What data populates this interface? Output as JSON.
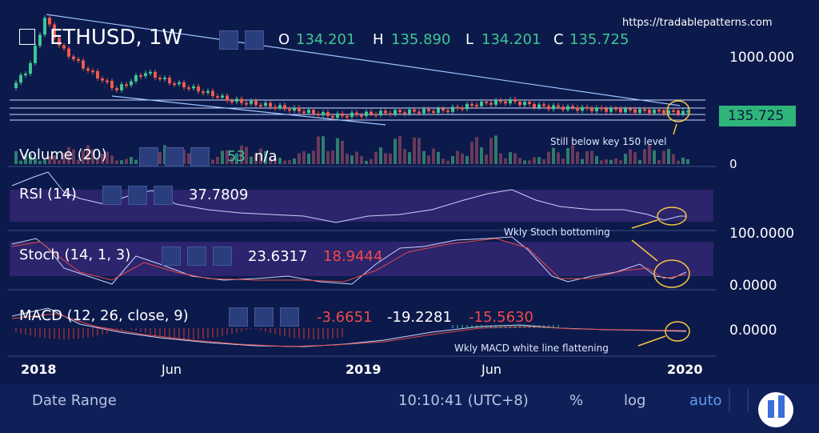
{
  "header": {
    "url": "https://tradablepatterns.com"
  },
  "main_pane": {
    "symbol": "ETHUSD, 1W",
    "ohlc": [
      {
        "label": "O",
        "value": "134.201"
      },
      {
        "label": "H",
        "value": "135.890"
      },
      {
        "label": "L",
        "value": "134.201"
      },
      {
        "label": "C",
        "value": "135.725"
      }
    ],
    "price_label": "1000.000",
    "last_price": "135.725",
    "annotation": "Still below key 150 level"
  },
  "volume_pane": {
    "name": "Volume (20)",
    "value": "53",
    "extra": "n/a",
    "axis_label": "0"
  },
  "rsi_pane": {
    "name": "RSI (14)",
    "value": "37.7809"
  },
  "stoch_pane": {
    "name": "Stoch (14, 1, 3)",
    "values": [
      "23.6317",
      "18.9444"
    ],
    "axis_labels": [
      "100.0000",
      "0.0000"
    ],
    "annotation": "Wkly Stoch bottoming"
  },
  "macd_pane": {
    "name": "MACD (12, 26, close, 9)",
    "values": [
      "-3.6651",
      "-19.2281",
      "-15.5630"
    ],
    "axis_label": "0.0000",
    "annotation": "Wkly MACD white line flattening"
  },
  "time_axis": {
    "labels": [
      "2018",
      "Jun",
      "2019",
      "Jun",
      "2020"
    ]
  },
  "footer": {
    "date_range": "Date Range",
    "clock": "10:10:41 (UTC+8)",
    "buttons": [
      "%",
      "log",
      "auto"
    ]
  }
}
